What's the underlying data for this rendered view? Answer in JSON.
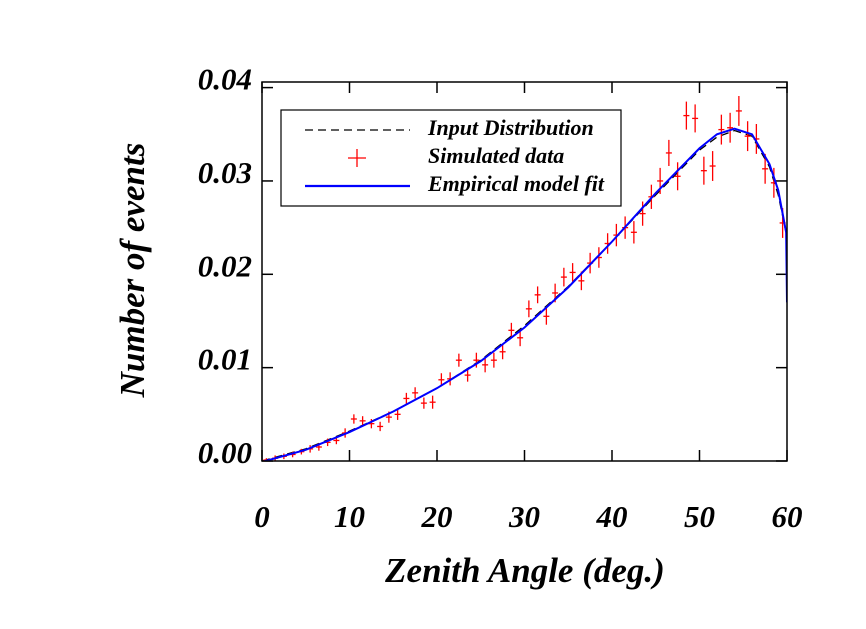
{
  "chart_data": {
    "type": "line",
    "x_label": "Zenith Angle (deg.)",
    "y_label": "Number of events",
    "xlim": [
      0,
      60
    ],
    "xticks": [
      0,
      10,
      20,
      30,
      40,
      50,
      60
    ],
    "ylim": [
      0,
      0.0406
    ],
    "yticks": [
      {
        "value": 0,
        "label": "0.00"
      },
      0.01,
      0.02,
      0.03,
      0.04
    ],
    "legend": "upper left",
    "series": [
      {
        "name": "Input Distribution",
        "color": "#000000",
        "line_style": "dashed",
        "x": [
          0,
          5,
          10,
          15,
          20,
          25,
          30,
          35,
          40,
          45,
          50,
          52,
          54,
          56,
          58,
          59,
          60
        ],
        "values": [
          0.0,
          0.0013,
          0.0032,
          0.0053,
          0.0078,
          0.0108,
          0.0145,
          0.0187,
          0.0235,
          0.0285,
          0.0333,
          0.0347,
          0.0354,
          0.0348,
          0.0315,
          0.0285,
          0.024
        ]
      },
      {
        "name": "Simulated data",
        "color": "#ff0000",
        "marker": "+",
        "x": [
          0.5,
          1.5,
          2.5,
          3.5,
          4.5,
          5.5,
          6.5,
          7.5,
          8.5,
          9.5,
          10.5,
          11.5,
          12.5,
          13.5,
          14.5,
          15.5,
          16.5,
          17.5,
          18.5,
          19.5,
          20.5,
          21.5,
          22.5,
          23.5,
          24.5,
          25.5,
          26.5,
          27.5,
          28.5,
          29.5,
          30.5,
          31.5,
          32.5,
          33.5,
          34.5,
          35.5,
          36.5,
          37.5,
          38.5,
          39.5,
          40.5,
          41.5,
          42.5,
          43.5,
          44.5,
          45.5,
          46.5,
          47.5,
          48.5,
          49.5,
          50.5,
          51.5,
          52.5,
          53.5,
          54.5,
          55.5,
          56.5,
          57.5,
          58.5,
          59.5
        ],
        "values": [
          0.0001,
          0.0003,
          0.0005,
          0.0007,
          0.001,
          0.0013,
          0.0015,
          0.002,
          0.0022,
          0.003,
          0.0045,
          0.0043,
          0.004,
          0.0037,
          0.0047,
          0.005,
          0.0067,
          0.0073,
          0.0062,
          0.0063,
          0.0087,
          0.0088,
          0.0108,
          0.0092,
          0.0108,
          0.0103,
          0.0108,
          0.0117,
          0.014,
          0.0132,
          0.0163,
          0.0178,
          0.0155,
          0.018,
          0.0197,
          0.0202,
          0.0193,
          0.0212,
          0.0218,
          0.0233,
          0.0242,
          0.025,
          0.0245,
          0.0265,
          0.0283,
          0.03,
          0.033,
          0.0305,
          0.037,
          0.0367,
          0.0311,
          0.0316,
          0.0355,
          0.0357,
          0.0375,
          0.0348,
          0.0345,
          0.0313,
          0.0298,
          0.0255
        ],
        "errors": [
          0.0002,
          0.0003,
          0.0003,
          0.0003,
          0.0003,
          0.0004,
          0.0004,
          0.0004,
          0.0004,
          0.0005,
          0.0005,
          0.0005,
          0.0005,
          0.0005,
          0.0006,
          0.0006,
          0.0006,
          0.0006,
          0.0006,
          0.0007,
          0.0007,
          0.0007,
          0.0007,
          0.0007,
          0.0008,
          0.0008,
          0.0008,
          0.0008,
          0.0008,
          0.0009,
          0.0009,
          0.0009,
          0.0009,
          0.001,
          0.001,
          0.001,
          0.001,
          0.0011,
          0.0011,
          0.0011,
          0.0012,
          0.0012,
          0.0012,
          0.0013,
          0.0013,
          0.0014,
          0.0014,
          0.0015,
          0.0015,
          0.0015,
          0.0015,
          0.0016,
          0.0016,
          0.0016,
          0.0016,
          0.0016,
          0.0016,
          0.0016,
          0.0016,
          0.0016
        ]
      },
      {
        "name": "Empirical model fit",
        "color": "#0000ff",
        "line_style": "solid",
        "x": [
          0,
          5,
          10,
          15,
          20,
          25,
          30,
          35,
          40,
          45,
          50,
          52,
          54,
          56,
          58,
          59,
          59.9,
          60
        ],
        "values": [
          -0.0001,
          0.0012,
          0.0031,
          0.0053,
          0.0078,
          0.0107,
          0.0143,
          0.0186,
          0.0235,
          0.0287,
          0.0335,
          0.035,
          0.0356,
          0.035,
          0.0318,
          0.029,
          0.0245,
          0.017
        ]
      }
    ]
  }
}
